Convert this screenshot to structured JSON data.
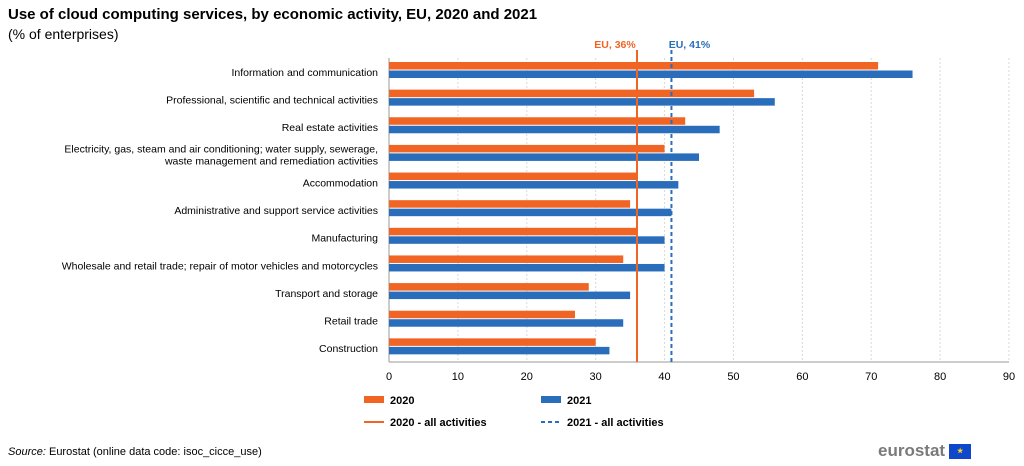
{
  "chart_data": {
    "type": "bar",
    "orientation": "horizontal",
    "title": "Use of cloud computing services, by economic activity, EU, 2020 and 2021",
    "subtitle": "(% of enterprises)",
    "categories": [
      "Information and communication",
      "Professional, scientific and technical activities",
      "Real estate activities",
      "Electricity, gas, steam and air conditioning; water supply, sewerage,|waste management and remediation activities",
      "Accommodation",
      "Administrative and support service activities",
      "Manufacturing",
      "Wholesale and retail trade; repair of motor vehicles and motorcycles",
      "Transport and storage",
      "Retail trade",
      "Construction"
    ],
    "series": [
      {
        "name": "2020",
        "color": "#f06424",
        "values": [
          71,
          53,
          43,
          40,
          36,
          35,
          36,
          34,
          29,
          27,
          30
        ]
      },
      {
        "name": "2021",
        "color": "#2a6ebb",
        "values": [
          76,
          56,
          48,
          45,
          42,
          41,
          40,
          40,
          35,
          34,
          32
        ]
      }
    ],
    "reference_lines": [
      {
        "name": "2020 - all activities",
        "value": 36,
        "label": "EU, 36%",
        "color": "#f06424",
        "style": "solid"
      },
      {
        "name": "2021 - all activities",
        "value": 41,
        "label": "EU, 41%",
        "color": "#2a6ebb",
        "style": "dashed"
      }
    ],
    "xlim": [
      0,
      90
    ],
    "xticks": [
      0,
      10,
      20,
      30,
      40,
      50,
      60,
      70,
      80,
      90
    ],
    "grid": true,
    "legend_position": "bottom"
  },
  "source": {
    "label": "Source:",
    "text": " Eurostat (online data code: isoc_cicce_use)"
  },
  "logo": {
    "text": "eurostat"
  }
}
